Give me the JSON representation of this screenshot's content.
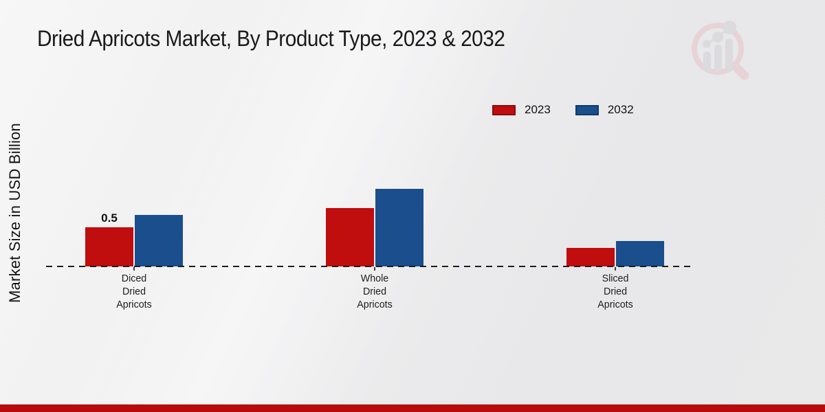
{
  "title": "Dried Apricots Market, By Product Type, 2023 & 2032",
  "ylabel": "Market Size in USD Billion",
  "legend": [
    {
      "label": "2023",
      "color": "#c00d0d",
      "border": "#8f0909"
    },
    {
      "label": "2032",
      "color": "#1a4e8c",
      "border": "#0f3a6d"
    }
  ],
  "chart_data": {
    "type": "bar",
    "title": "Dried Apricots Market, By Product Type, 2023 & 2032",
    "xlabel": "",
    "ylabel": "Market Size in USD Billion",
    "categories": [
      "Diced Dried Apricots",
      "Whole Dried Apricots",
      "Sliced Dried Apricots"
    ],
    "series": [
      {
        "name": "2023",
        "color": "#c00d0d",
        "values": [
          0.5,
          0.75,
          0.24
        ]
      },
      {
        "name": "2032",
        "color": "#1a4e8c",
        "values": [
          0.66,
          1.0,
          0.33
        ]
      }
    ],
    "annotations": [
      {
        "series_index": 0,
        "category_index": 0,
        "text": "0.5"
      }
    ],
    "ylim": [
      0,
      1.2
    ],
    "grid": false,
    "legend_position": "upper right",
    "baseline_style": "dashed"
  },
  "branding": {
    "logo_name": "magnifier-bar-chart-logo",
    "footer_color": "#b70c0c",
    "logo_ring_color": "#e7bfc4",
    "logo_bar_color": "#cfcfd4"
  }
}
